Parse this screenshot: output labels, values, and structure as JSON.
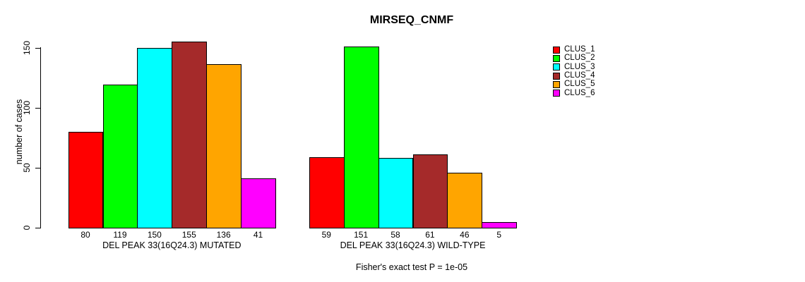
{
  "chart_data": {
    "type": "bar",
    "title": "MIRSEQ_CNMF",
    "ylabel": "number of cases",
    "xlabel": "",
    "ylim": [
      0,
      155
    ],
    "yticks": [
      0,
      50,
      100,
      150
    ],
    "grid": false,
    "legend_position": "right-outside",
    "categories": [
      "DEL PEAK 33(16Q24.3) MUTATED",
      "DEL PEAK 33(16Q24.3) WILD-TYPE"
    ],
    "series": [
      {
        "name": "CLUS_1",
        "color": "#FF0000",
        "values": [
          80,
          59
        ]
      },
      {
        "name": "CLUS_2",
        "color": "#00FF00",
        "values": [
          119,
          151
        ]
      },
      {
        "name": "CLUS_3",
        "color": "#00FFFF",
        "values": [
          150,
          58
        ]
      },
      {
        "name": "CLUS_4",
        "color": "#A52A2A",
        "values": [
          155,
          61
        ]
      },
      {
        "name": "CLUS_5",
        "color": "#FFA500",
        "values": [
          136,
          46
        ]
      },
      {
        "name": "CLUS_6",
        "color": "#FF00FF",
        "values": [
          41,
          5
        ]
      }
    ],
    "bar_value_labels": [
      [
        80,
        119,
        150,
        155,
        136,
        41
      ],
      [
        59,
        151,
        58,
        61,
        46,
        5
      ]
    ],
    "annotation": "Fisher's exact test P = 1e-05"
  }
}
